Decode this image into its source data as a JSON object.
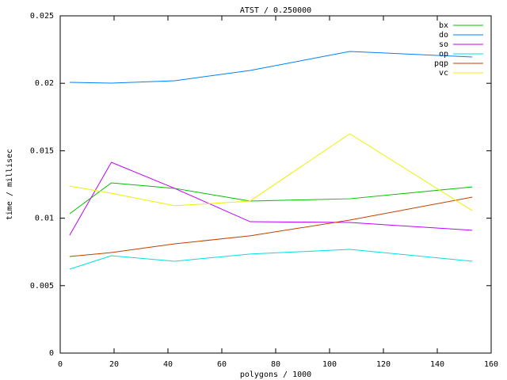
{
  "chart_data": {
    "type": "line",
    "title": "ATST / 0.250000",
    "x_label": "polygons / 1000",
    "y_label": "time / millisec",
    "x": [
      3.5,
      19,
      42.5,
      70.5,
      107.5,
      153
    ],
    "series": [
      {
        "name": "bx",
        "color": "#00c000",
        "values": [
          0.01033,
          0.01262,
          0.01221,
          0.01127,
          0.01144,
          0.01232
        ]
      },
      {
        "name": "do",
        "color": "#0080ff",
        "values": [
          0.02007,
          0.02001,
          0.02019,
          0.02095,
          0.02236,
          0.02195
        ]
      },
      {
        "name": "so",
        "color": "#c000ff",
        "values": [
          0.00874,
          0.01414,
          0.01221,
          0.00974,
          0.00968,
          0.0091
        ]
      },
      {
        "name": "op",
        "color": "#00e0e0",
        "values": [
          0.00622,
          0.00722,
          0.00681,
          0.00734,
          0.00769,
          0.00681
        ]
      },
      {
        "name": "pqp",
        "color": "#c04000",
        "values": [
          0.00716,
          0.00745,
          0.0081,
          0.00869,
          0.00986,
          0.01156
        ]
      },
      {
        "name": "vc",
        "color": "#eeee00",
        "values": [
          0.01238,
          0.01185,
          0.01092,
          0.01127,
          0.01626,
          0.01056
        ]
      }
    ],
    "xlim": [
      0,
      160
    ],
    "xticks": [
      0,
      20,
      40,
      60,
      80,
      100,
      120,
      140,
      160
    ],
    "ylim": [
      0,
      0.025
    ],
    "yticks": [
      0,
      0.005,
      0.01,
      0.015,
      0.02,
      0.025
    ],
    "legend": "top-right",
    "grid": false
  }
}
